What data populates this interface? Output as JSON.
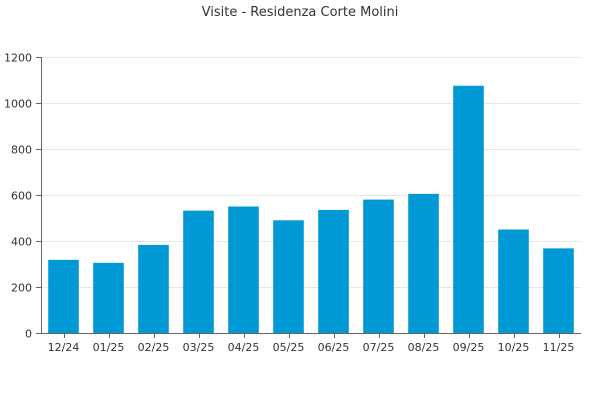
{
  "chart_data": {
    "type": "bar",
    "title": "Visite - Residenza Corte Molini",
    "xlabel": "",
    "ylabel": "",
    "categories": [
      "12/24",
      "01/25",
      "02/25",
      "03/25",
      "04/25",
      "05/25",
      "06/25",
      "07/25",
      "08/25",
      "09/25",
      "10/25",
      "11/25"
    ],
    "values": [
      318,
      305,
      383,
      532,
      550,
      490,
      535,
      580,
      605,
      1075,
      450,
      368
    ],
    "ylim": [
      0,
      1200
    ],
    "yticks": [
      0,
      200,
      400,
      600,
      800,
      1000,
      1200
    ],
    "grid": true,
    "legend": "none",
    "bar_color": "#0099d6"
  }
}
